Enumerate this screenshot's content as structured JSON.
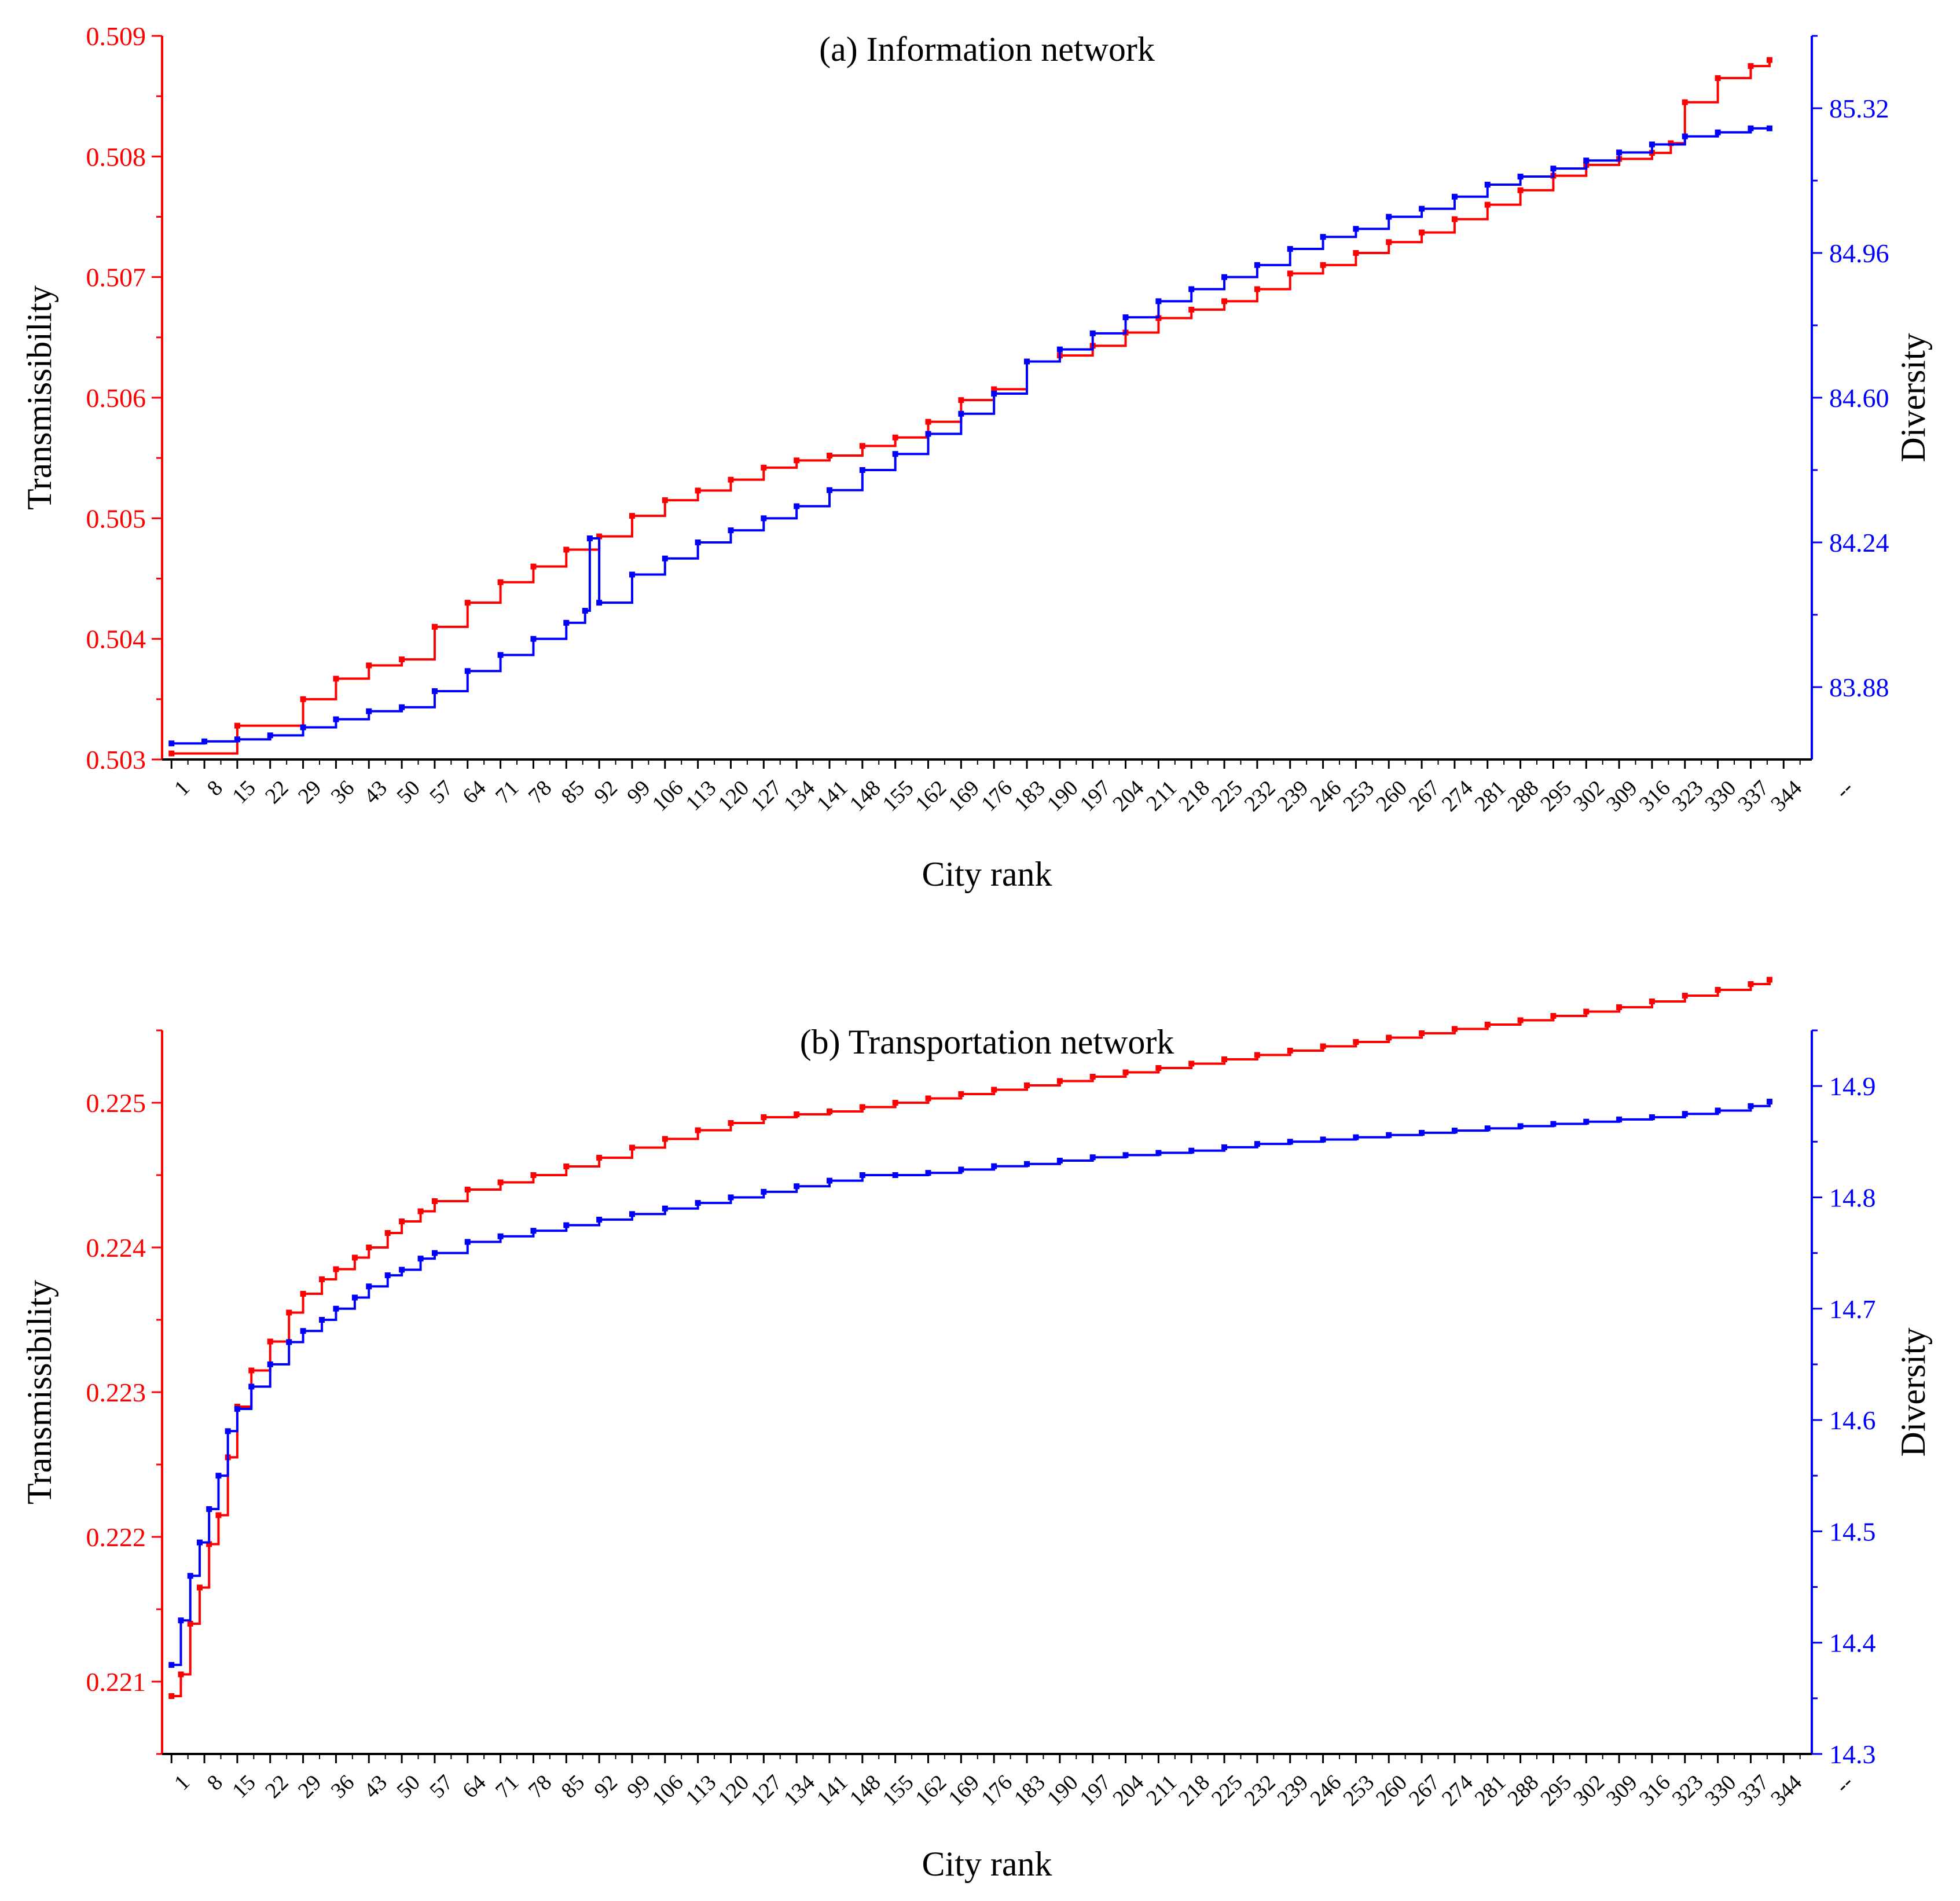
{
  "colors": {
    "transmissibility": "#ff0000",
    "diversity": "#0000ff",
    "axis": "#000000"
  },
  "chart_data": [
    {
      "type": "line",
      "title": "(a) Information network",
      "xlabel": "City rank",
      "ylabel_left": "Transmissibility",
      "ylabel_right": "Diversity",
      "xlim": [
        -1,
        350
      ],
      "ylim_left": [
        0.503,
        0.509
      ],
      "ylim_right": [
        83.7,
        85.5
      ],
      "xticks": [
        "1",
        "8",
        "15",
        "22",
        "29",
        "36",
        "43",
        "50",
        "57",
        "64",
        "71",
        "78",
        "85",
        "92",
        "99",
        "106",
        "113",
        "120",
        "127",
        "134",
        "141",
        "148",
        "155",
        "162",
        "169",
        "176",
        "183",
        "190",
        "197",
        "204",
        "211",
        "218",
        "225",
        "232",
        "239",
        "246",
        "253",
        "260",
        "267",
        "274",
        "281",
        "288",
        "295",
        "302",
        "309",
        "316",
        "323",
        "330",
        "337",
        "344",
        "--"
      ],
      "yticks_left": [
        "0.503",
        "0.504",
        "0.505",
        "0.506",
        "0.507",
        "0.508",
        "0.509"
      ],
      "yticks_right": [
        "83.88",
        "84.24",
        "84.60",
        "84.96",
        "85.32"
      ],
      "series": [
        {
          "name": "Transmissibility",
          "axis": "left",
          "color": "#ff0000",
          "x": [
            1,
            15,
            29,
            36,
            43,
            50,
            57,
            64,
            71,
            78,
            85,
            92,
            99,
            106,
            113,
            120,
            127,
            134,
            141,
            148,
            155,
            162,
            169,
            176,
            183,
            190,
            197,
            204,
            211,
            218,
            225,
            232,
            239,
            246,
            253,
            260,
            267,
            274,
            281,
            288,
            295,
            302,
            309,
            316,
            320,
            323,
            330,
            337,
            341
          ],
          "values": [
            0.50305,
            0.50328,
            0.5035,
            0.50367,
            0.50378,
            0.50383,
            0.5041,
            0.5043,
            0.50447,
            0.5046,
            0.50474,
            0.50485,
            0.50502,
            0.50515,
            0.50523,
            0.50532,
            0.50542,
            0.50548,
            0.50552,
            0.5056,
            0.50567,
            0.5058,
            0.50598,
            0.50607,
            0.5063,
            0.50635,
            0.50643,
            0.50654,
            0.50666,
            0.50673,
            0.5068,
            0.5069,
            0.50703,
            0.5071,
            0.5072,
            0.50729,
            0.50737,
            0.50748,
            0.5076,
            0.50772,
            0.50784,
            0.50793,
            0.50798,
            0.50803,
            0.50811,
            0.50845,
            0.50865,
            0.50875,
            0.5088
          ]
        },
        {
          "name": "Diversity",
          "axis": "right",
          "color": "#0000ff",
          "x": [
            1,
            8,
            15,
            22,
            29,
            36,
            43,
            50,
            57,
            64,
            71,
            78,
            85,
            89,
            90,
            92,
            99,
            106,
            113,
            120,
            127,
            134,
            141,
            148,
            155,
            162,
            169,
            176,
            183,
            190,
            197,
            204,
            211,
            218,
            225,
            232,
            239,
            246,
            253,
            260,
            267,
            274,
            281,
            288,
            295,
            302,
            309,
            316,
            323,
            330,
            337,
            341
          ],
          "values": [
            83.74,
            83.745,
            83.75,
            83.76,
            83.78,
            83.8,
            83.82,
            83.83,
            83.87,
            83.92,
            83.96,
            84.0,
            84.04,
            84.07,
            84.25,
            84.09,
            84.16,
            84.2,
            84.24,
            84.27,
            84.3,
            84.33,
            84.37,
            84.42,
            84.46,
            84.51,
            84.56,
            84.61,
            84.69,
            84.72,
            84.76,
            84.8,
            84.84,
            84.87,
            84.9,
            84.93,
            84.97,
            85.0,
            85.02,
            85.05,
            85.07,
            85.1,
            85.13,
            85.15,
            85.17,
            85.19,
            85.21,
            85.23,
            85.25,
            85.26,
            85.27,
            85.27
          ]
        }
      ]
    },
    {
      "type": "line",
      "title": "(b) Transportation network",
      "xlabel": "City rank",
      "ylabel_left": "Transmissibility",
      "ylabel_right": "Diversity",
      "xlim": [
        -1,
        350
      ],
      "ylim_left": [
        0.2205,
        0.2255
      ],
      "ylim_right": [
        14.3,
        14.95
      ],
      "xticks": [
        "1",
        "8",
        "15",
        "22",
        "29",
        "36",
        "43",
        "50",
        "57",
        "64",
        "71",
        "78",
        "85",
        "92",
        "99",
        "106",
        "113",
        "120",
        "127",
        "134",
        "141",
        "148",
        "155",
        "162",
        "169",
        "176",
        "183",
        "190",
        "197",
        "204",
        "211",
        "218",
        "225",
        "232",
        "239",
        "246",
        "253",
        "260",
        "267",
        "274",
        "281",
        "288",
        "295",
        "302",
        "309",
        "316",
        "323",
        "330",
        "337",
        "344",
        "--"
      ],
      "yticks_left": [
        "0.221",
        "0.222",
        "0.223",
        "0.224",
        "0.225"
      ],
      "yticks_right": [
        "14.3",
        "14.4",
        "14.5",
        "14.6",
        "14.7",
        "14.8",
        "14.9"
      ],
      "series": [
        {
          "name": "Transmissibility",
          "axis": "left",
          "color": "#ff0000",
          "x": [
            1,
            3,
            5,
            7,
            9,
            11,
            13,
            15,
            18,
            22,
            26,
            29,
            33,
            36,
            40,
            43,
            47,
            50,
            54,
            57,
            64,
            71,
            78,
            85,
            92,
            99,
            106,
            113,
            120,
            127,
            134,
            141,
            148,
            155,
            162,
            169,
            176,
            183,
            190,
            197,
            204,
            211,
            218,
            225,
            232,
            239,
            246,
            253,
            260,
            267,
            274,
            281,
            288,
            295,
            302,
            309,
            316,
            323,
            330,
            337,
            341
          ],
          "values": [
            0.2209,
            0.22105,
            0.2214,
            0.22165,
            0.22195,
            0.22215,
            0.22255,
            0.2229,
            0.22315,
            0.22335,
            0.22355,
            0.22368,
            0.22378,
            0.22385,
            0.22393,
            0.224,
            0.2241,
            0.22418,
            0.22425,
            0.22432,
            0.2244,
            0.22445,
            0.2245,
            0.22456,
            0.22462,
            0.22469,
            0.22475,
            0.22481,
            0.22486,
            0.2249,
            0.22492,
            0.22494,
            0.22497,
            0.225,
            0.22503,
            0.22506,
            0.22509,
            0.22512,
            0.22515,
            0.22518,
            0.22521,
            0.22524,
            0.22527,
            0.2253,
            0.22533,
            0.22536,
            0.22539,
            0.22542,
            0.22545,
            0.22548,
            0.22551,
            0.22554,
            0.22557,
            0.2256,
            0.22563,
            0.22566,
            0.2257,
            0.22574,
            0.22578,
            0.22582,
            0.22585
          ]
        },
        {
          "name": "Diversity",
          "axis": "right",
          "color": "#0000ff",
          "x": [
            1,
            3,
            5,
            7,
            9,
            11,
            13,
            15,
            18,
            22,
            26,
            29,
            33,
            36,
            40,
            43,
            47,
            50,
            54,
            57,
            64,
            71,
            78,
            85,
            92,
            99,
            106,
            113,
            120,
            127,
            134,
            141,
            148,
            155,
            162,
            169,
            176,
            183,
            190,
            197,
            204,
            211,
            218,
            225,
            232,
            239,
            246,
            253,
            260,
            267,
            274,
            281,
            288,
            295,
            302,
            309,
            316,
            323,
            330,
            337,
            341
          ],
          "values": [
            14.38,
            14.42,
            14.46,
            14.49,
            14.52,
            14.55,
            14.59,
            14.61,
            14.63,
            14.65,
            14.67,
            14.68,
            14.69,
            14.7,
            14.71,
            14.72,
            14.73,
            14.735,
            14.745,
            14.75,
            14.76,
            14.765,
            14.77,
            14.775,
            14.78,
            14.785,
            14.79,
            14.795,
            14.8,
            14.805,
            14.81,
            14.815,
            14.82,
            14.82,
            14.822,
            14.825,
            14.828,
            14.83,
            14.833,
            14.836,
            14.838,
            14.84,
            14.842,
            14.845,
            14.848,
            14.85,
            14.852,
            14.854,
            14.856,
            14.858,
            14.86,
            14.862,
            14.864,
            14.866,
            14.868,
            14.87,
            14.872,
            14.875,
            14.878,
            14.882,
            14.886
          ]
        }
      ]
    }
  ]
}
